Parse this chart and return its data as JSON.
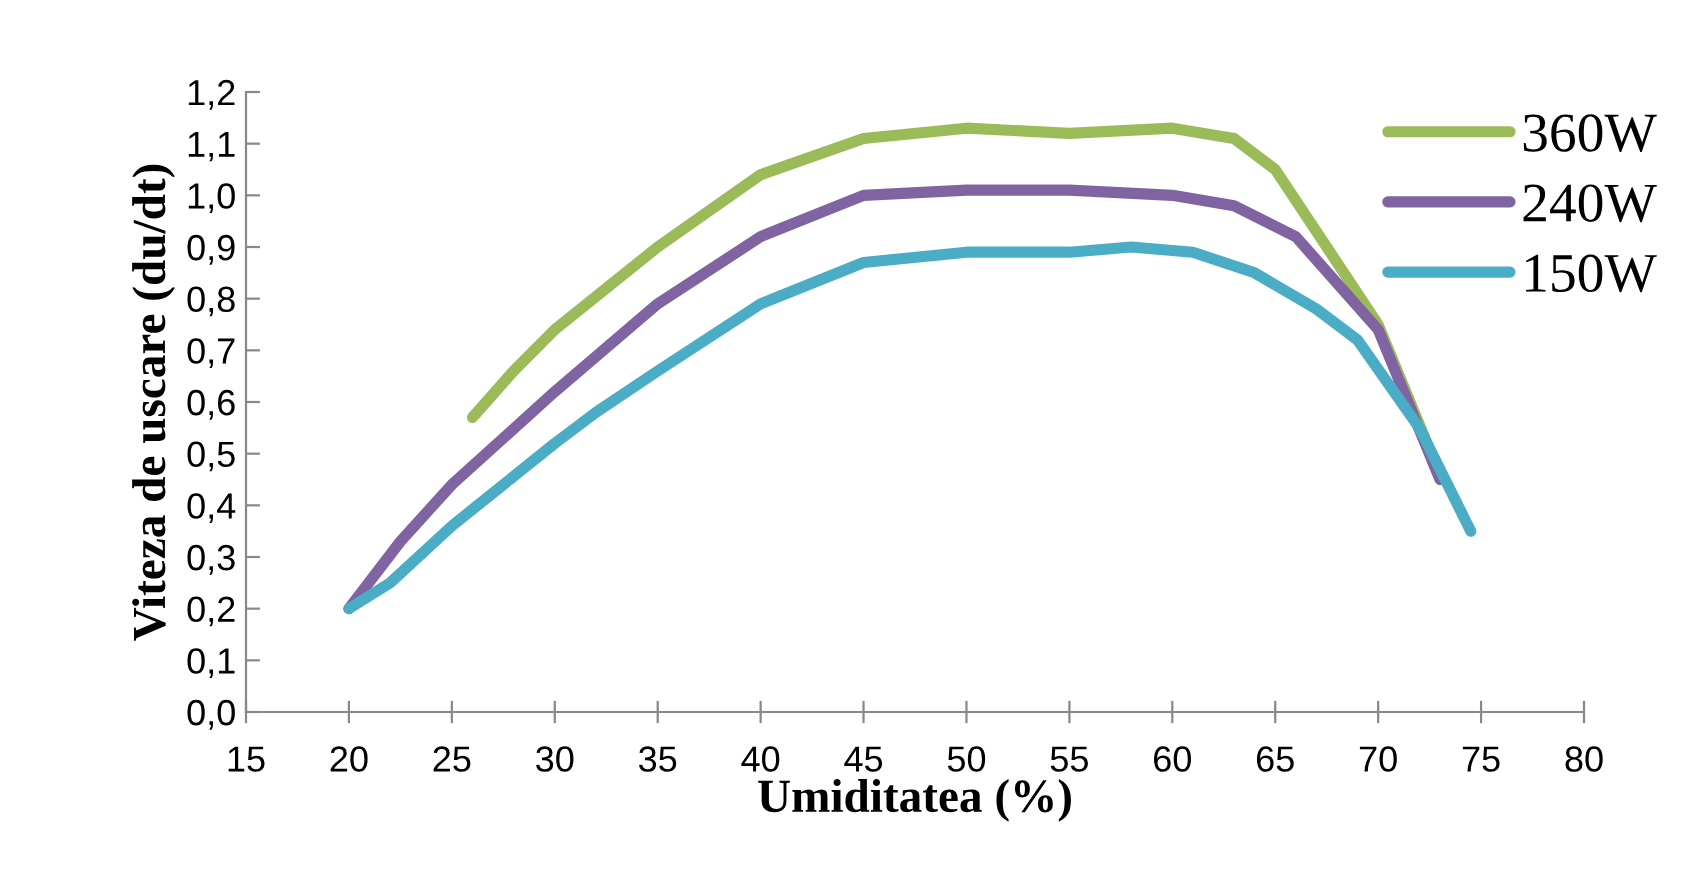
{
  "chart_data": {
    "type": "line",
    "xlabel": "Umiditatea (%)",
    "ylabel": "Viteza de uscare (du/dt)",
    "xlim": [
      15,
      80
    ],
    "xticks": [
      15,
      20,
      25,
      30,
      35,
      40,
      45,
      50,
      55,
      60,
      65,
      70,
      75,
      80
    ],
    "ylim": [
      0,
      1.2
    ],
    "yticks": [
      {
        "value": 0,
        "label": "0,0"
      },
      {
        "value": 0.1,
        "label": "0,1"
      },
      {
        "value": 0.2,
        "label": "0,2"
      },
      {
        "value": 0.3,
        "label": "0,3"
      },
      {
        "value": 0.4,
        "label": "0,4"
      },
      {
        "value": 0.5,
        "label": "0,5"
      },
      {
        "value": 0.6,
        "label": "0,6"
      },
      {
        "value": 0.7,
        "label": "0,7"
      },
      {
        "value": 0.8,
        "label": "0,8"
      },
      {
        "value": 0.9,
        "label": "0,9"
      },
      {
        "value": 1.0,
        "label": "1,0"
      },
      {
        "value": 1.1,
        "label": "1,1"
      },
      {
        "value": 1.2,
        "label": "1,2"
      }
    ],
    "grid": false,
    "legend": "top right",
    "marker": "none",
    "line_style": "solid",
    "series": [
      {
        "name": "360W",
        "color": "#9bbb59",
        "x": [
          26,
          28,
          30,
          35,
          40,
          45,
          50,
          55,
          60,
          63,
          65,
          67,
          70,
          73
        ],
        "values": [
          0.57,
          0.66,
          0.74,
          0.9,
          1.04,
          1.11,
          1.13,
          1.12,
          1.13,
          1.11,
          1.05,
          0.93,
          0.75,
          0.46
        ]
      },
      {
        "name": "240W",
        "color": "#8064a2",
        "x": [
          20,
          22.5,
          25,
          30,
          35,
          40,
          45,
          50,
          55,
          60,
          63,
          66,
          70,
          73
        ],
        "values": [
          0.2,
          0.33,
          0.44,
          0.62,
          0.79,
          0.92,
          1.0,
          1.01,
          1.01,
          1.0,
          0.98,
          0.92,
          0.74,
          0.45
        ]
      },
      {
        "name": "150W",
        "color": "#4bacc6",
        "x": [
          20,
          22,
          25,
          30,
          32,
          35,
          40,
          45,
          50,
          55,
          58,
          61,
          64,
          67,
          69,
          72,
          74.5
        ],
        "values": [
          0.2,
          0.25,
          0.36,
          0.52,
          0.58,
          0.66,
          0.79,
          0.87,
          0.89,
          0.89,
          0.9,
          0.89,
          0.85,
          0.78,
          0.72,
          0.55,
          0.35
        ]
      }
    ]
  }
}
